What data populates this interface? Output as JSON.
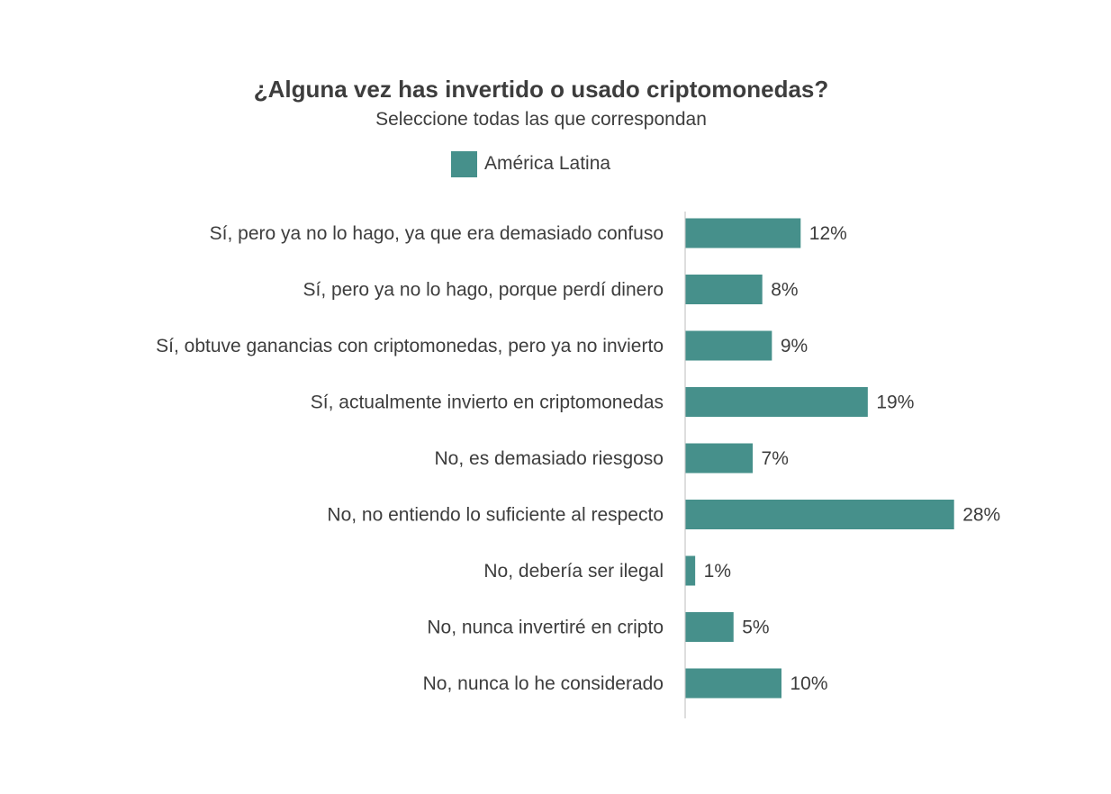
{
  "chart_data": {
    "type": "bar",
    "orientation": "horizontal",
    "title": "¿Alguna vez has invertido o usado criptomonedas?",
    "subtitle": "Seleccione todas las que correspondan",
    "legend": {
      "position": "top-center",
      "entries": [
        "América Latina"
      ]
    },
    "categories": [
      "Sí, pero ya no lo hago, ya que era demasiado confuso",
      "Sí, pero ya no lo hago, porque perdí dinero",
      "Sí, obtuve ganancias con criptomonedas, pero ya no invierto",
      "Sí, actualmente invierto en criptomonedas",
      "No, es demasiado riesgoso",
      "No, no entiendo lo suficiente al respecto",
      "No, debería ser ilegal",
      "No, nunca invertiré en cripto",
      "No, nunca lo he considerado"
    ],
    "series": [
      {
        "name": "América Latina",
        "color": "#46908b",
        "values": [
          12,
          8,
          9,
          19,
          7,
          28,
          1,
          5,
          10
        ],
        "labels": [
          "12%",
          "8%",
          "9%",
          "19%",
          "7%",
          "28%",
          "1%",
          "5%",
          "10%"
        ]
      }
    ],
    "xlabel": "",
    "ylabel": "",
    "xlim": [
      0,
      30
    ],
    "grid": false
  }
}
